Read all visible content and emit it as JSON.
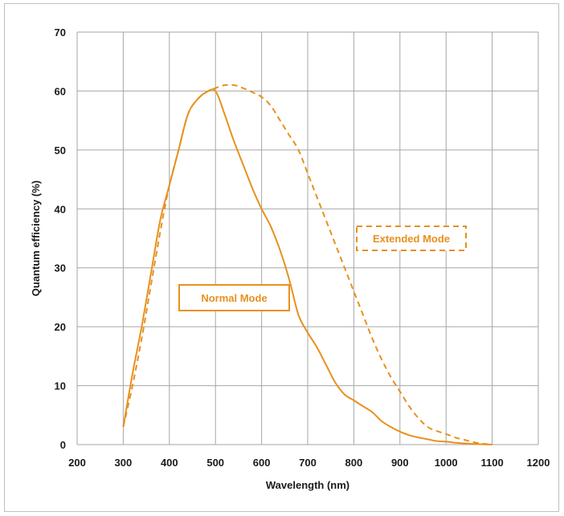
{
  "chart_data": {
    "type": "line",
    "xlabel": "Wavelength (nm)",
    "ylabel": "Quantum efficiency (%)",
    "xlim": [
      200,
      1200
    ],
    "ylim": [
      0,
      70
    ],
    "x_ticks": [
      200,
      300,
      400,
      500,
      600,
      700,
      800,
      900,
      1000,
      1100,
      1200
    ],
    "y_ticks": [
      0,
      10,
      20,
      30,
      40,
      50,
      60,
      70
    ],
    "grid": true,
    "legend": "none",
    "accent_color": "#e8901f",
    "series": [
      {
        "name": "Normal Mode",
        "style": "solid",
        "x": [
          300,
          320,
          340,
          360,
          380,
          400,
          420,
          440,
          460,
          480,
          500,
          520,
          540,
          560,
          580,
          600,
          620,
          640,
          660,
          680,
          700,
          720,
          740,
          760,
          780,
          800,
          820,
          840,
          860,
          880,
          900,
          920,
          940,
          960,
          980,
          1000,
          1020,
          1040,
          1060,
          1080,
          1100
        ],
        "values": [
          3,
          12,
          20,
          29,
          38,
          44,
          50,
          56,
          58.5,
          59.8,
          60,
          56,
          51.5,
          47.5,
          43.5,
          40,
          37,
          33,
          28,
          22,
          19,
          16.5,
          13.5,
          10.5,
          8.5,
          7.5,
          6.5,
          5.5,
          4,
          3,
          2.2,
          1.6,
          1.2,
          0.9,
          0.6,
          0.5,
          0.3,
          0.2,
          0.1,
          0.05,
          0
        ]
      },
      {
        "name": "Extended Mode",
        "style": "dashed",
        "x": [
          300,
          320,
          340,
          360,
          380,
          400,
          420,
          440,
          460,
          480,
          500,
          520,
          540,
          560,
          580,
          600,
          620,
          640,
          660,
          680,
          700,
          720,
          740,
          760,
          780,
          800,
          820,
          840,
          860,
          880,
          900,
          920,
          940,
          960,
          980,
          1000,
          1020,
          1040,
          1060,
          1080,
          1100
        ],
        "values": [
          3,
          10,
          18,
          27,
          36,
          44,
          50,
          56,
          58.5,
          59.8,
          60.5,
          61,
          61,
          60.5,
          59.8,
          59,
          57.5,
          55,
          52.5,
          50,
          46,
          42,
          38,
          34,
          30,
          26,
          22,
          18,
          14.5,
          11.5,
          9,
          6.5,
          4.5,
          3,
          2.3,
          1.8,
          1.2,
          0.8,
          0.4,
          0.15,
          0
        ]
      }
    ],
    "annotations": [
      {
        "text": "Normal Mode",
        "series": "Normal Mode"
      },
      {
        "text": "Extended Mode",
        "series": "Extended Mode"
      }
    ]
  }
}
